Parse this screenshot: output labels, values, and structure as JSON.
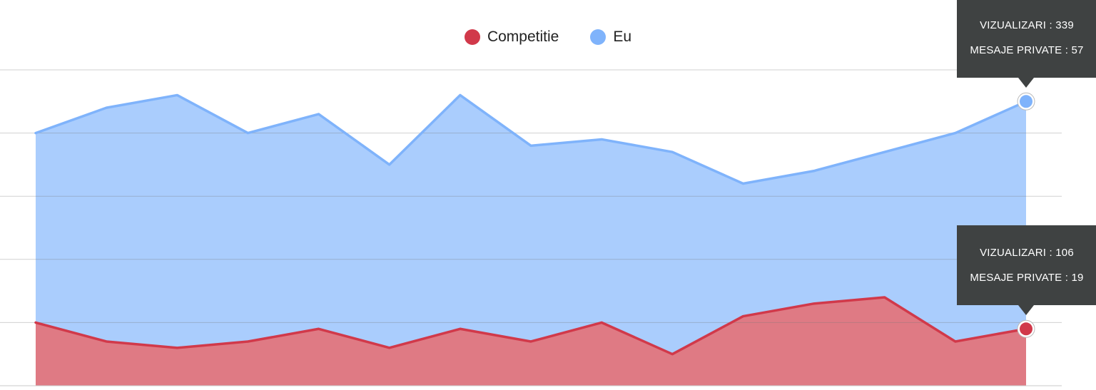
{
  "chart_data": {
    "type": "area",
    "title": "",
    "xlabel": "",
    "ylabel": "",
    "ylim": [
      0,
      500
    ],
    "grid": true,
    "legend_position": "top-center",
    "x": [
      1,
      2,
      3,
      4,
      5,
      6,
      7,
      8,
      9,
      10,
      11,
      12,
      13,
      14,
      15
    ],
    "series": [
      {
        "name": "Competitie",
        "color": "#d1394a",
        "fill": "#df7a84",
        "values": [
          100,
          70,
          60,
          70,
          90,
          60,
          90,
          70,
          100,
          50,
          110,
          130,
          140,
          70,
          90
        ]
      },
      {
        "name": "Eu",
        "color": "#7fb3fb",
        "fill": "#aacdfd",
        "values": [
          400,
          440,
          460,
          400,
          430,
          350,
          460,
          380,
          390,
          370,
          320,
          340,
          370,
          400,
          450
        ]
      }
    ]
  },
  "tooltips": [
    {
      "series": "Eu",
      "index": 14,
      "row1_label": "VIZUALIZARI :",
      "row1_value": "339",
      "row2_label": "MESAJE PRIVATE :",
      "row2_value": "57"
    },
    {
      "series": "Competitie",
      "index": 14,
      "row1_label": "VIZUALIZARI :",
      "row1_value": "106",
      "row2_label": "MESAJE PRIVATE :",
      "row2_value": "19"
    }
  ]
}
